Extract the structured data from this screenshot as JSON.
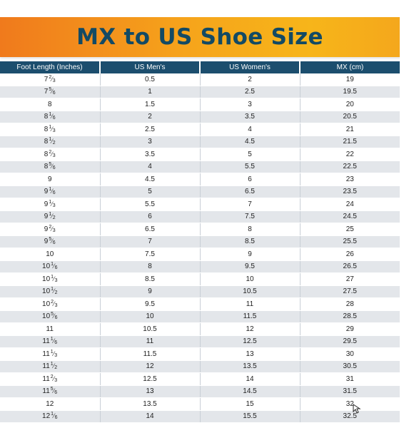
{
  "title": "MX to US Shoe Size",
  "columns": [
    "Foot Length (Inches)",
    "US Men's",
    "US Women's",
    "MX (cm)"
  ],
  "rows": [
    {
      "whole": "7",
      "num": "2",
      "den": "3",
      "men": "0.5",
      "women": "2",
      "mx": "19"
    },
    {
      "whole": "7",
      "num": "5",
      "den": "6",
      "men": "1",
      "women": "2.5",
      "mx": "19.5"
    },
    {
      "whole": "8",
      "num": "",
      "den": "",
      "men": "1.5",
      "women": "3",
      "mx": "20"
    },
    {
      "whole": "8",
      "num": "1",
      "den": "6",
      "men": "2",
      "women": "3.5",
      "mx": "20.5"
    },
    {
      "whole": "8",
      "num": "1",
      "den": "3",
      "men": "2.5",
      "women": "4",
      "mx": "21"
    },
    {
      "whole": "8",
      "num": "1",
      "den": "2",
      "men": "3",
      "women": "4.5",
      "mx": "21.5"
    },
    {
      "whole": "8",
      "num": "2",
      "den": "3",
      "men": "3.5",
      "women": "5",
      "mx": "22"
    },
    {
      "whole": "8",
      "num": "5",
      "den": "6",
      "men": "4",
      "women": "5.5",
      "mx": "22.5"
    },
    {
      "whole": "9",
      "num": "",
      "den": "",
      "men": "4.5",
      "women": "6",
      "mx": "23"
    },
    {
      "whole": "9",
      "num": "1",
      "den": "6",
      "men": "5",
      "women": "6.5",
      "mx": "23.5"
    },
    {
      "whole": "9",
      "num": "1",
      "den": "3",
      "men": "5.5",
      "women": "7",
      "mx": "24"
    },
    {
      "whole": "9",
      "num": "1",
      "den": "2",
      "men": "6",
      "women": "7.5",
      "mx": "24.5"
    },
    {
      "whole": "9",
      "num": "2",
      "den": "3",
      "men": "6.5",
      "women": "8",
      "mx": "25"
    },
    {
      "whole": "9",
      "num": "5",
      "den": "6",
      "men": "7",
      "women": "8.5",
      "mx": "25.5"
    },
    {
      "whole": "10",
      "num": "",
      "den": "",
      "men": "7.5",
      "women": "9",
      "mx": "26"
    },
    {
      "whole": "10",
      "num": "1",
      "den": "6",
      "men": "8",
      "women": "9.5",
      "mx": "26.5"
    },
    {
      "whole": "10",
      "num": "1",
      "den": "3",
      "men": "8.5",
      "women": "10",
      "mx": "27"
    },
    {
      "whole": "10",
      "num": "1",
      "den": "2",
      "men": "9",
      "women": "10.5",
      "mx": "27.5"
    },
    {
      "whole": "10",
      "num": "2",
      "den": "3",
      "men": "9.5",
      "women": "11",
      "mx": "28"
    },
    {
      "whole": "10",
      "num": "5",
      "den": "6",
      "men": "10",
      "women": "11.5",
      "mx": "28.5"
    },
    {
      "whole": "11",
      "num": "",
      "den": "",
      "men": "10.5",
      "women": "12",
      "mx": "29"
    },
    {
      "whole": "11",
      "num": "1",
      "den": "6",
      "men": "11",
      "women": "12.5",
      "mx": "29.5"
    },
    {
      "whole": "11",
      "num": "1",
      "den": "3",
      "men": "11.5",
      "women": "13",
      "mx": "30"
    },
    {
      "whole": "11",
      "num": "1",
      "den": "2",
      "men": "12",
      "women": "13.5",
      "mx": "30.5"
    },
    {
      "whole": "11",
      "num": "2",
      "den": "3",
      "men": "12.5",
      "women": "14",
      "mx": "31"
    },
    {
      "whole": "11",
      "num": "5",
      "den": "6",
      "men": "13",
      "women": "14.5",
      "mx": "31.5"
    },
    {
      "whole": "12",
      "num": "",
      "den": "",
      "men": "13.5",
      "women": "15",
      "mx": "32"
    },
    {
      "whole": "12",
      "num": "1",
      "den": "6",
      "men": "14",
      "women": "15.5",
      "mx": "32.5"
    }
  ],
  "colors": {
    "banner_start": "#f07a1c",
    "banner_end": "#f7b51a",
    "title_text": "#134a64",
    "header_bg": "#1c4e6e",
    "stripe": "#e3e6ea"
  },
  "icons": [
    "cursor-icon"
  ]
}
